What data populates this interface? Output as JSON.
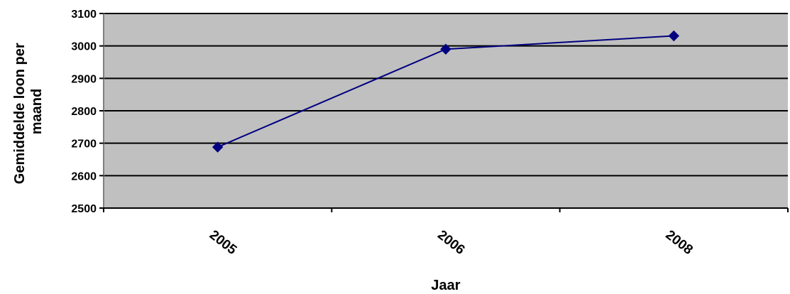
{
  "chart_data": {
    "type": "line",
    "categories": [
      "2005",
      "2006",
      "2008"
    ],
    "series": [
      {
        "values": [
          2688,
          2990,
          3031
        ]
      }
    ],
    "xlabel": "Jaar",
    "ylabel": "Gemiddelde loon per maand",
    "ylabel_lines": [
      "Gemiddelde loon per",
      "maand"
    ],
    "ylim": [
      2500,
      3100
    ],
    "yticks": [
      2500,
      2600,
      2700,
      2800,
      2900,
      3000,
      3100
    ],
    "ytick_labels": [
      "2500",
      "2600",
      "2700",
      "2800",
      "2900",
      "3000",
      "3100"
    ],
    "grid": true,
    "legend": "none",
    "colors": {
      "plot_background": "#c0c0c0",
      "gridline": "#000000",
      "series_line": "#000080",
      "marker": "#000080"
    },
    "marker_shape": "diamond-icon"
  }
}
